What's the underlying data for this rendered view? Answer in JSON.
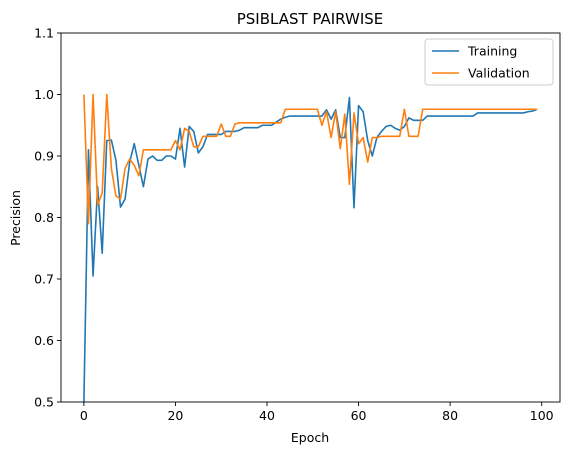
{
  "chart_data": {
    "type": "line",
    "title": "PSIBLAST PAIRWISE",
    "xlabel": "Epoch",
    "ylabel": "Precision",
    "xlim": [
      -5,
      104
    ],
    "ylim": [
      0.5,
      1.1
    ],
    "xticks": [
      0,
      20,
      40,
      60,
      80,
      100
    ],
    "yticks": [
      0.5,
      0.6,
      0.7,
      0.8,
      0.9,
      1.0,
      1.1
    ],
    "xtick_labels": [
      "0",
      "20",
      "40",
      "60",
      "80",
      "100"
    ],
    "ytick_labels": [
      "0.5",
      "0.6",
      "0.7",
      "0.8",
      "0.9",
      "1.0",
      "1.1"
    ],
    "legend_position": "top-right",
    "series": [
      {
        "name": "Training",
        "color": "#1f77b4",
        "x": [
          0,
          1,
          2,
          3,
          4,
          5,
          6,
          7,
          8,
          9,
          10,
          11,
          12,
          13,
          14,
          15,
          16,
          17,
          18,
          19,
          20,
          21,
          22,
          23,
          24,
          25,
          26,
          27,
          28,
          29,
          30,
          31,
          32,
          33,
          34,
          35,
          36,
          37,
          38,
          39,
          40,
          41,
          42,
          43,
          44,
          45,
          46,
          47,
          48,
          49,
          50,
          51,
          52,
          53,
          54,
          55,
          56,
          57,
          58,
          59,
          60,
          61,
          62,
          63,
          64,
          65,
          66,
          67,
          68,
          69,
          70,
          71,
          72,
          73,
          74,
          75,
          76,
          77,
          78,
          79,
          80,
          81,
          82,
          83,
          84,
          85,
          86,
          87,
          88,
          89,
          90,
          91,
          92,
          93,
          94,
          95,
          96,
          97,
          98,
          99
        ],
        "values": [
          0.5,
          0.91,
          0.705,
          0.85,
          0.742,
          0.925,
          0.926,
          0.893,
          0.817,
          0.83,
          0.89,
          0.92,
          0.885,
          0.85,
          0.895,
          0.9,
          0.893,
          0.893,
          0.9,
          0.9,
          0.895,
          0.945,
          0.882,
          0.948,
          0.94,
          0.905,
          0.915,
          0.935,
          0.935,
          0.935,
          0.935,
          0.94,
          0.94,
          0.94,
          0.942,
          0.946,
          0.946,
          0.946,
          0.946,
          0.95,
          0.95,
          0.95,
          0.955,
          0.96,
          0.963,
          0.965,
          0.965,
          0.965,
          0.965,
          0.965,
          0.965,
          0.965,
          0.965,
          0.975,
          0.96,
          0.975,
          0.93,
          0.93,
          0.995,
          0.816,
          0.982,
          0.972,
          0.925,
          0.9,
          0.93,
          0.94,
          0.948,
          0.95,
          0.945,
          0.942,
          0.948,
          0.962,
          0.958,
          0.958,
          0.958,
          0.965,
          0.965,
          0.965,
          0.965,
          0.965,
          0.965,
          0.965,
          0.965,
          0.965,
          0.965,
          0.965,
          0.97,
          0.97,
          0.97,
          0.97,
          0.97,
          0.97,
          0.97,
          0.97,
          0.97,
          0.97,
          0.97,
          0.972,
          0.973,
          0.976
        ]
      },
      {
        "name": "Validation",
        "color": "#ff7f0e",
        "x": [
          0,
          1,
          2,
          3,
          4,
          5,
          6,
          7,
          8,
          9,
          10,
          11,
          12,
          13,
          14,
          15,
          16,
          17,
          18,
          19,
          20,
          21,
          22,
          23,
          24,
          25,
          26,
          27,
          28,
          29,
          30,
          31,
          32,
          33,
          34,
          35,
          36,
          37,
          38,
          39,
          40,
          41,
          42,
          43,
          44,
          45,
          46,
          47,
          48,
          49,
          50,
          51,
          52,
          53,
          54,
          55,
          56,
          57,
          58,
          59,
          60,
          61,
          62,
          63,
          64,
          65,
          66,
          67,
          68,
          69,
          70,
          71,
          72,
          73,
          74,
          75,
          76,
          77,
          78,
          79,
          80,
          81,
          82,
          83,
          84,
          85,
          86,
          87,
          88,
          89,
          90,
          91,
          92,
          93,
          94,
          95,
          96,
          97,
          98,
          99
        ],
        "values": [
          1.0,
          0.79,
          1.0,
          0.82,
          0.84,
          1.0,
          0.88,
          0.835,
          0.83,
          0.88,
          0.895,
          0.885,
          0.868,
          0.91,
          0.91,
          0.91,
          0.91,
          0.91,
          0.91,
          0.91,
          0.925,
          0.91,
          0.945,
          0.94,
          0.915,
          0.915,
          0.932,
          0.932,
          0.932,
          0.932,
          0.952,
          0.932,
          0.932,
          0.952,
          0.954,
          0.954,
          0.954,
          0.954,
          0.954,
          0.954,
          0.954,
          0.954,
          0.954,
          0.954,
          0.976,
          0.976,
          0.976,
          0.976,
          0.976,
          0.976,
          0.976,
          0.976,
          0.95,
          0.972,
          0.93,
          0.972,
          0.912,
          0.968,
          0.854,
          0.97,
          0.92,
          0.93,
          0.89,
          0.93,
          0.93,
          0.932,
          0.932,
          0.932,
          0.932,
          0.932,
          0.976,
          0.932,
          0.932,
          0.932,
          0.976,
          0.976,
          0.976,
          0.976,
          0.976,
          0.976,
          0.976,
          0.976,
          0.976,
          0.976,
          0.976,
          0.976,
          0.976,
          0.976,
          0.976,
          0.976,
          0.976,
          0.976,
          0.976,
          0.976,
          0.976,
          0.976,
          0.976,
          0.976,
          0.976,
          0.976
        ]
      }
    ]
  }
}
